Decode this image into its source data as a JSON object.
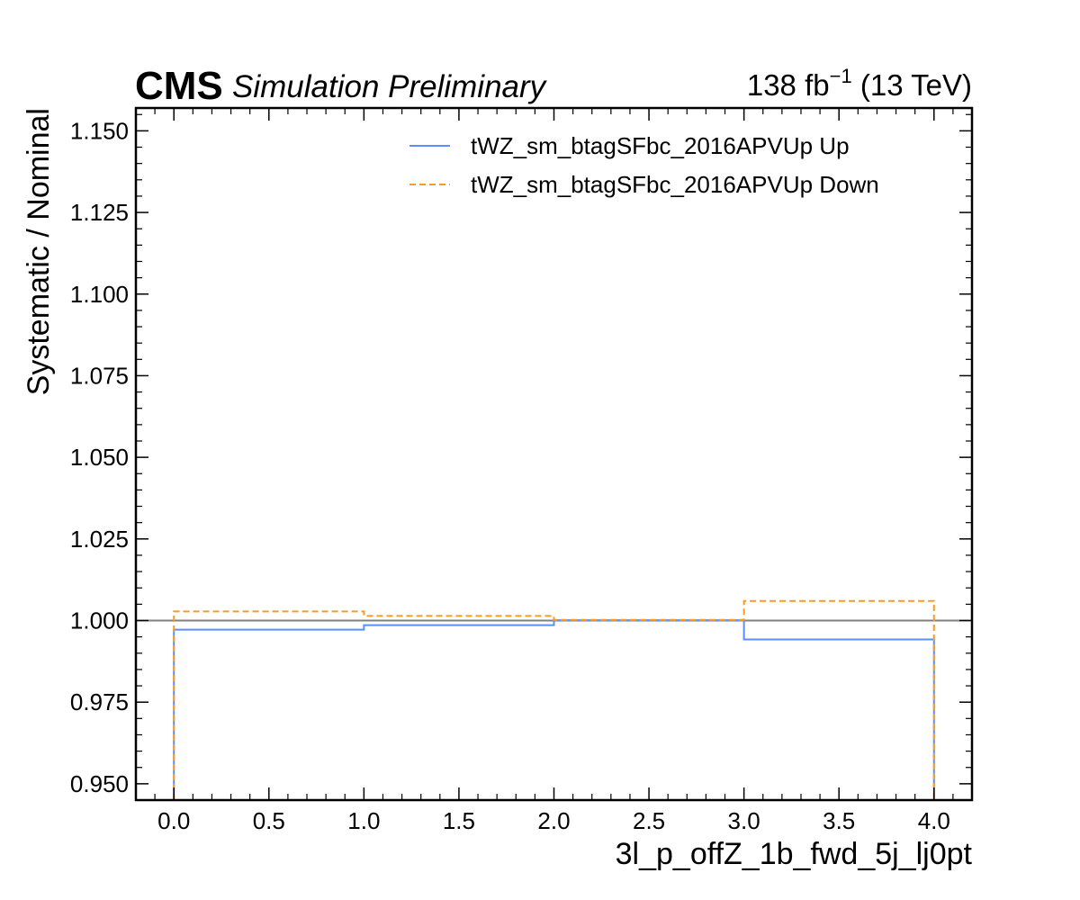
{
  "chart_data": {
    "type": "line",
    "style": "step-histogram",
    "header_left_bold": "CMS",
    "header_left_italic": "Simulation Preliminary",
    "header_right": {
      "lumi_value": "138",
      "lumi_unit": "fb",
      "lumi_exponent": "−1",
      "energy": "(13 TeV)"
    },
    "xlabel": "3l_p_offZ_1b_fwd_5j_lj0pt",
    "ylabel": "Systematic / Nominal",
    "xlim": [
      -0.2,
      4.2
    ],
    "ylim": [
      0.945,
      1.157
    ],
    "x_ticks": [
      0.0,
      0.5,
      1.0,
      1.5,
      2.0,
      2.5,
      3.0,
      3.5,
      4.0
    ],
    "x_tick_labels": [
      "0.0",
      "0.5",
      "1.0",
      "1.5",
      "2.0",
      "2.5",
      "3.0",
      "3.5",
      "4.0"
    ],
    "y_ticks": [
      0.95,
      0.975,
      1.0,
      1.025,
      1.05,
      1.075,
      1.1,
      1.125,
      1.15
    ],
    "y_tick_labels": [
      "0.950",
      "0.975",
      "1.000",
      "1.025",
      "1.050",
      "1.075",
      "1.100",
      "1.125",
      "1.150"
    ],
    "bin_edges": [
      0,
      1,
      2,
      3,
      4
    ],
    "reference_line": 1.0,
    "legend_position": "top-right",
    "grid": false,
    "series": [
      {
        "name": "tWZ_sm_btagSFbc_2016APVUp Up",
        "values": [
          0.9972,
          0.9986,
          1.0001,
          0.9942
        ],
        "color": "#5790fc",
        "dashed": false
      },
      {
        "name": "tWZ_sm_btagSFbc_2016APVUp Down",
        "values": [
          1.0028,
          1.0014,
          1.0002,
          1.006
        ],
        "color": "#f89c20",
        "dashed": true
      }
    ],
    "reference_color": "#808080"
  }
}
